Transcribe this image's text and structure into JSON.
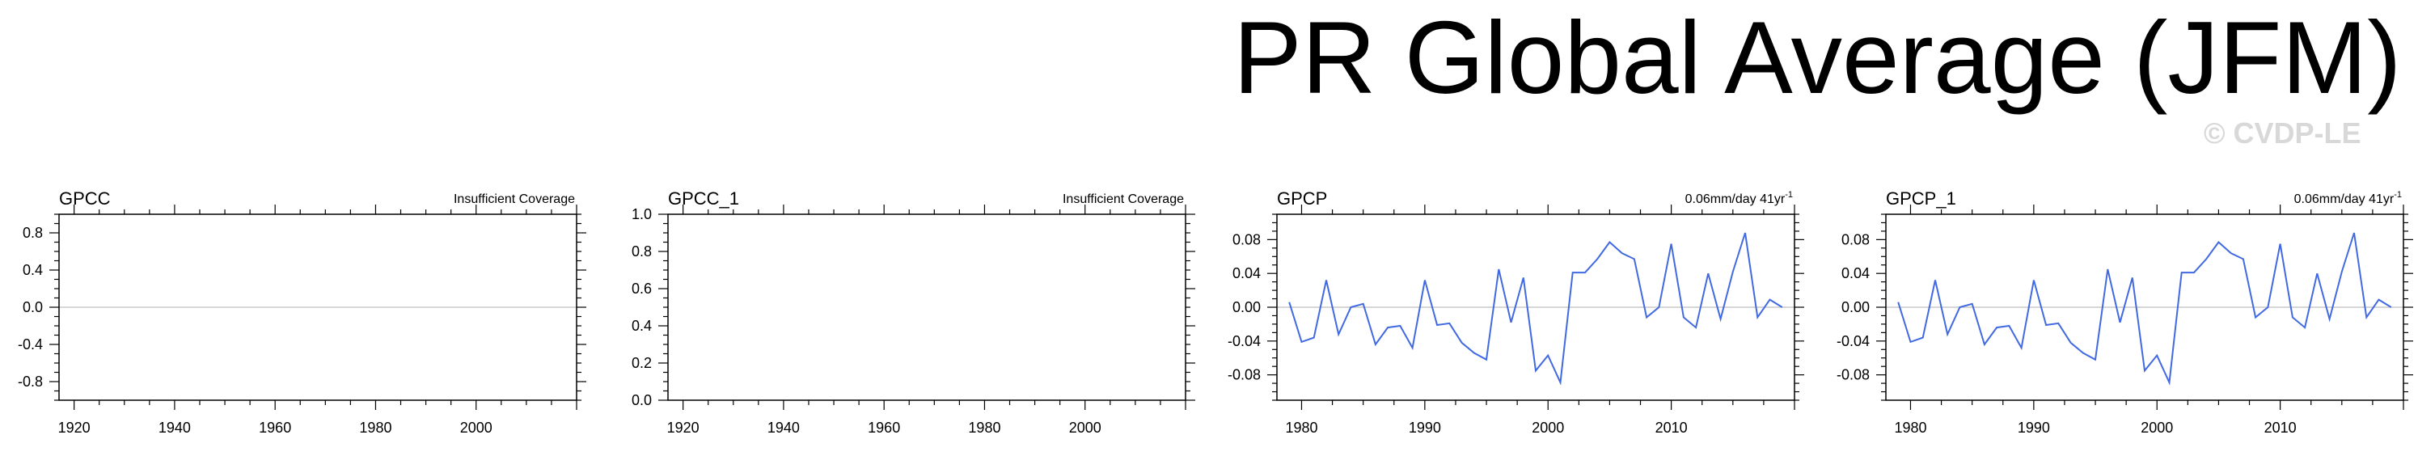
{
  "title": "PR Global Average (JFM)",
  "watermark": "© CVDP-LE",
  "colors": {
    "line": "#4169e1",
    "zero_line": "#c8c8c8",
    "axis": "#000000",
    "watermark": "#d8d8d8"
  },
  "chart_data": [
    {
      "type": "line",
      "title": "GPCC",
      "subtitle": "Insufficient Coverage",
      "xlim": [
        1917,
        2020
      ],
      "ylim": [
        -1.0,
        1.0
      ],
      "xticks": [
        1920,
        1940,
        1960,
        1980,
        2000
      ],
      "yticks": [
        0.8,
        0.4,
        0.0,
        -0.4,
        -0.8
      ],
      "ytick_labels": [
        "0.8",
        "0.4",
        "0.0",
        "-0.4",
        "-0.8"
      ],
      "zero_line": true,
      "series": []
    },
    {
      "type": "line",
      "title": "GPCC_1",
      "subtitle": "Insufficient Coverage",
      "xlim": [
        1917,
        2020
      ],
      "ylim": [
        0.0,
        1.0
      ],
      "xticks": [
        1920,
        1940,
        1960,
        1980,
        2000
      ],
      "yticks": [
        1.0,
        0.8,
        0.6,
        0.4,
        0.2,
        0.0
      ],
      "ytick_labels": [
        "1.0",
        "0.8",
        "0.6",
        "0.4",
        "0.2",
        "0.0"
      ],
      "zero_line": false,
      "series": []
    },
    {
      "type": "line",
      "title": "GPCP",
      "subtitle": "0.06mm/day 41yr",
      "subtitle_sup": "-1",
      "xlim": [
        1978,
        2020
      ],
      "ylim": [
        -0.11,
        0.11
      ],
      "xticks": [
        1980,
        1990,
        2000,
        2010
      ],
      "yticks": [
        0.08,
        0.04,
        0.0,
        -0.04,
        -0.08
      ],
      "ytick_labels": [
        "0.08",
        "0.04",
        "0.00",
        "-0.04",
        "-0.08"
      ],
      "zero_line": true,
      "x": [
        1979,
        1980,
        1981,
        1982,
        1983,
        1984,
        1985,
        1986,
        1987,
        1988,
        1989,
        1990,
        1991,
        1992,
        1993,
        1994,
        1995,
        1996,
        1997,
        1998,
        1999,
        2000,
        2001,
        2002,
        2003,
        2004,
        2005,
        2006,
        2007,
        2008,
        2009,
        2010,
        2011,
        2012,
        2013,
        2014,
        2015,
        2016,
        2017,
        2018,
        2019
      ],
      "series": [
        {
          "values": [
            0.006,
            -0.041,
            -0.036,
            0.032,
            -0.032,
            0.0,
            0.004,
            -0.044,
            -0.024,
            -0.022,
            -0.048,
            0.032,
            -0.021,
            -0.019,
            -0.042,
            -0.054,
            -0.062,
            0.045,
            -0.018,
            0.035,
            -0.075,
            -0.057,
            -0.089,
            0.041,
            0.041,
            0.057,
            0.077,
            0.064,
            0.057,
            -0.012,
            0.0,
            0.075,
            -0.012,
            -0.024,
            0.04,
            -0.014,
            0.042,
            0.088,
            -0.012,
            0.009,
            0.0
          ]
        }
      ]
    },
    {
      "type": "line",
      "title": "GPCP_1",
      "subtitle": "0.06mm/day 41yr",
      "subtitle_sup": "-1",
      "xlim": [
        1978,
        2020
      ],
      "ylim": [
        -0.11,
        0.11
      ],
      "xticks": [
        1980,
        1990,
        2000,
        2010
      ],
      "yticks": [
        0.08,
        0.04,
        0.0,
        -0.04,
        -0.08
      ],
      "ytick_labels": [
        "0.08",
        "0.04",
        "0.00",
        "-0.04",
        "-0.08"
      ],
      "zero_line": true,
      "x": [
        1979,
        1980,
        1981,
        1982,
        1983,
        1984,
        1985,
        1986,
        1987,
        1988,
        1989,
        1990,
        1991,
        1992,
        1993,
        1994,
        1995,
        1996,
        1997,
        1998,
        1999,
        2000,
        2001,
        2002,
        2003,
        2004,
        2005,
        2006,
        2007,
        2008,
        2009,
        2010,
        2011,
        2012,
        2013,
        2014,
        2015,
        2016,
        2017,
        2018,
        2019
      ],
      "series": [
        {
          "values": [
            0.006,
            -0.041,
            -0.036,
            0.032,
            -0.032,
            0.0,
            0.004,
            -0.044,
            -0.024,
            -0.022,
            -0.048,
            0.032,
            -0.021,
            -0.019,
            -0.042,
            -0.054,
            -0.062,
            0.045,
            -0.018,
            0.035,
            -0.075,
            -0.057,
            -0.089,
            0.041,
            0.041,
            0.057,
            0.077,
            0.064,
            0.057,
            -0.012,
            0.0,
            0.075,
            -0.012,
            -0.024,
            0.04,
            -0.014,
            0.042,
            0.088,
            -0.012,
            0.009,
            0.0
          ]
        }
      ]
    }
  ]
}
